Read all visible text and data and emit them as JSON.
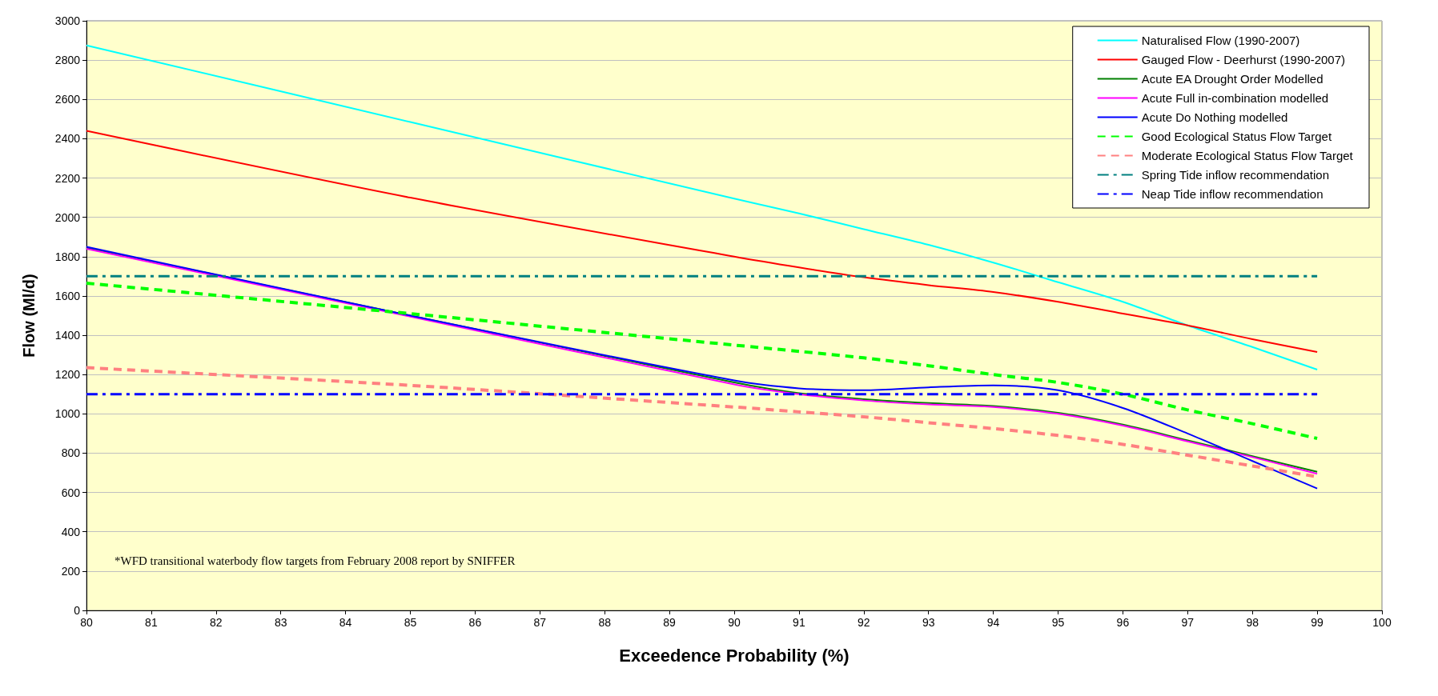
{
  "chart_data": {
    "type": "line",
    "xlabel": "Exceedence Probability (%)",
    "ylabel": "Flow (Ml/d)",
    "x": [
      80,
      85,
      90,
      91,
      92,
      93,
      94,
      95,
      96,
      97,
      98,
      99
    ],
    "xlim": [
      80,
      100
    ],
    "xticks": [
      80,
      81,
      82,
      83,
      84,
      85,
      86,
      87,
      88,
      89,
      90,
      91,
      92,
      93,
      94,
      95,
      96,
      97,
      98,
      99,
      100
    ],
    "ylim": [
      0,
      3000
    ],
    "yticks": [
      0,
      200,
      400,
      600,
      800,
      1000,
      1200,
      1400,
      1600,
      1800,
      2000,
      2200,
      2400,
      2600,
      2800,
      3000
    ],
    "grid": "y",
    "legend": "top right",
    "marker": "none",
    "series": [
      {
        "name": "Naturalised Flow (1990-2007)",
        "color": "#00ffff",
        "values": [
          2875,
          2485,
          2095,
          2020,
          1940,
          1860,
          1770,
          1670,
          1570,
          1450,
          1340,
          1225
        ]
      },
      {
        "name": "Gauged Flow - Deerhurst (1990-2007)",
        "color": "#ff0000",
        "values": [
          2440,
          2100,
          1800,
          1745,
          1695,
          1655,
          1620,
          1570,
          1510,
          1450,
          1380,
          1315
        ]
      },
      {
        "name": "Acute EA Drought Order Modelled",
        "color": "#008000",
        "values": [
          1845,
          1500,
          1160,
          1105,
          1075,
          1055,
          1040,
          1005,
          945,
          865,
          785,
          705
        ]
      },
      {
        "name": "Acute Full in-combination modelled",
        "color": "#ff00ff",
        "values": [
          1840,
          1495,
          1150,
          1100,
          1068,
          1048,
          1035,
          1000,
          940,
          860,
          780,
          695
        ]
      },
      {
        "name": "Acute Do Nothing modelled",
        "color": "#0000ff",
        "values": [
          1850,
          1500,
          1170,
          1130,
          1120,
          1135,
          1145,
          1120,
          1030,
          900,
          760,
          620
        ]
      },
      {
        "name": "Good Ecological Status Flow Target",
        "color": "#00ff00",
        "line_style": "dashed",
        "values": [
          1665,
          1510,
          1350,
          1318,
          1285,
          1245,
          1200,
          1160,
          1100,
          1020,
          950,
          875
        ]
      },
      {
        "name": "Moderate Ecological Status Flow Target",
        "color": "#ff8080",
        "line_style": "dashed",
        "values": [
          1235,
          1145,
          1035,
          1010,
          985,
          955,
          925,
          890,
          845,
          790,
          735,
          680
        ]
      },
      {
        "name": "Spring Tide inflow recommendation",
        "color": "#008080",
        "line_style": "dashdot",
        "values": [
          1700,
          1700,
          1700,
          1700,
          1700,
          1700,
          1700,
          1700,
          1700,
          1700,
          1700,
          1700
        ]
      },
      {
        "name": "Neap Tide inflow recommendation",
        "color": "#0000ff",
        "line_style": "dashdot",
        "values": [
          1100,
          1100,
          1100,
          1100,
          1100,
          1100,
          1100,
          1100,
          1100,
          1100,
          1100,
          1100
        ]
      }
    ],
    "annotations": [
      "*WFD transitional waterbody flow targets from February 2008 report by SNIFFER"
    ]
  }
}
